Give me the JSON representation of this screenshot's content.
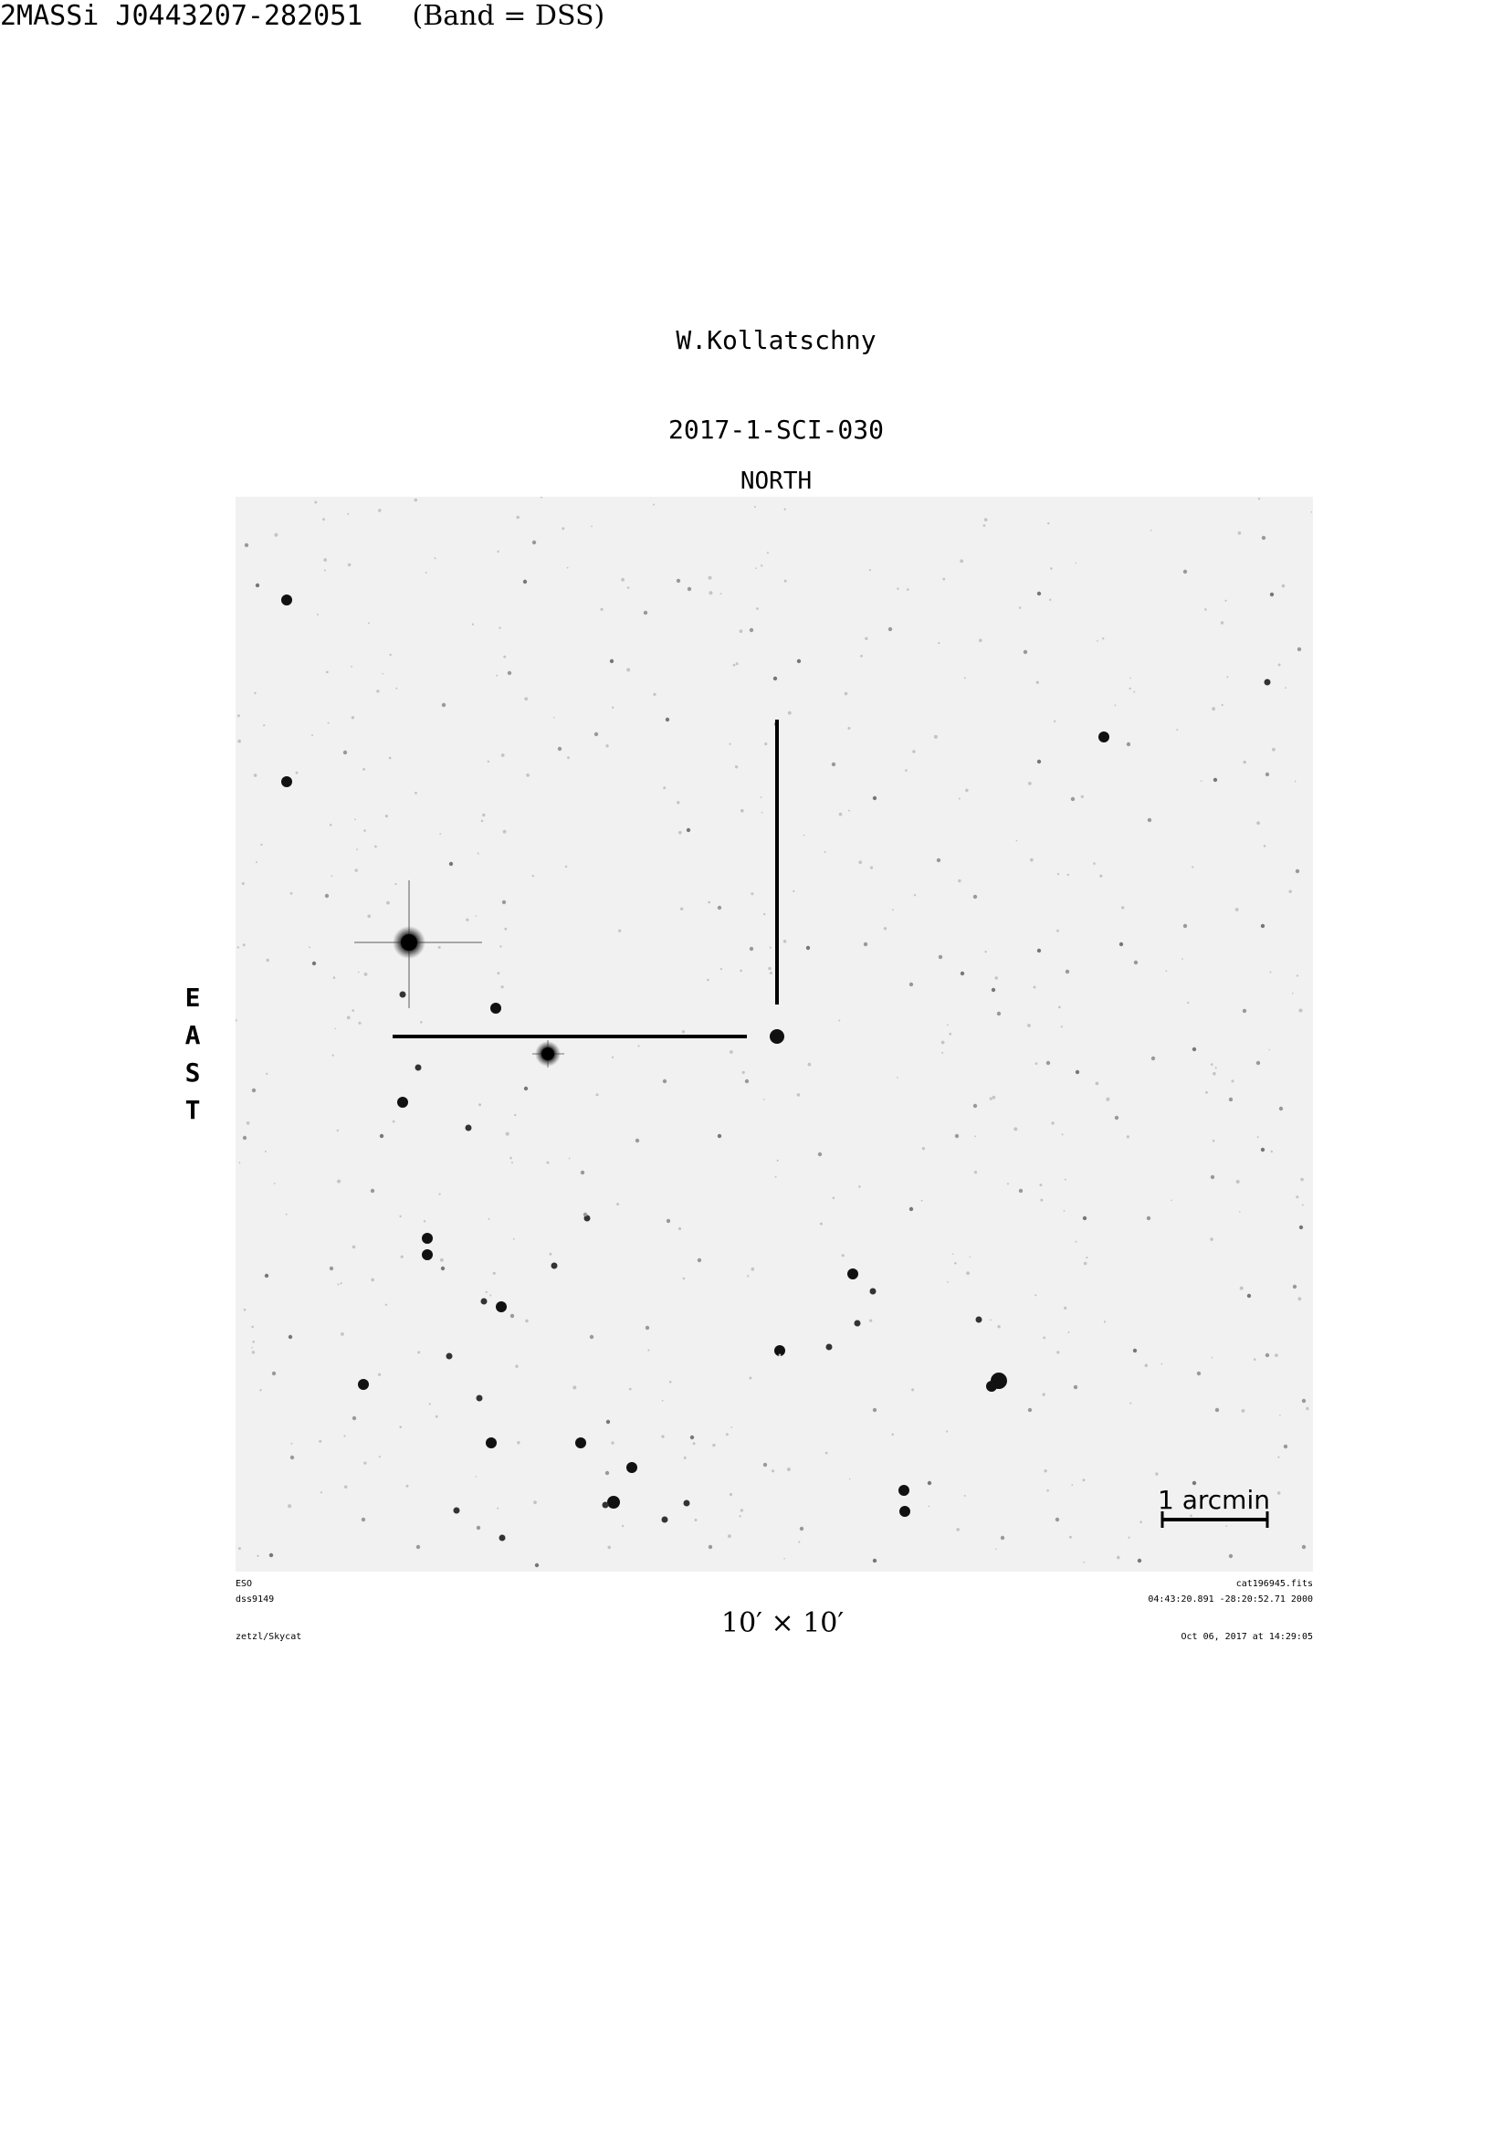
{
  "header": {
    "author": "W.Kollatschny",
    "target": "2MASSi J0443207-282051",
    "band": "(Band = DSS)",
    "program_id": "2017-1-SCI-030"
  },
  "orientation": {
    "north": "NORTH",
    "east_letters": [
      "E",
      "A",
      "S",
      "T"
    ]
  },
  "image": {
    "scale_label": "1 arcmin",
    "field_of_view": "10′ × 10′",
    "background_color": "#f1f1f1",
    "star_color": "#111111"
  },
  "footer": {
    "top_left_1": "ESO",
    "top_left_2": "dss9149",
    "bottom_left": "zetzl/Skycat",
    "top_right_1": "cat196945.fits",
    "top_right_2": "04:43:20.891 -28:20:52.71 2000",
    "bottom_right": "Oct 06, 2017 at 14:29:05"
  }
}
